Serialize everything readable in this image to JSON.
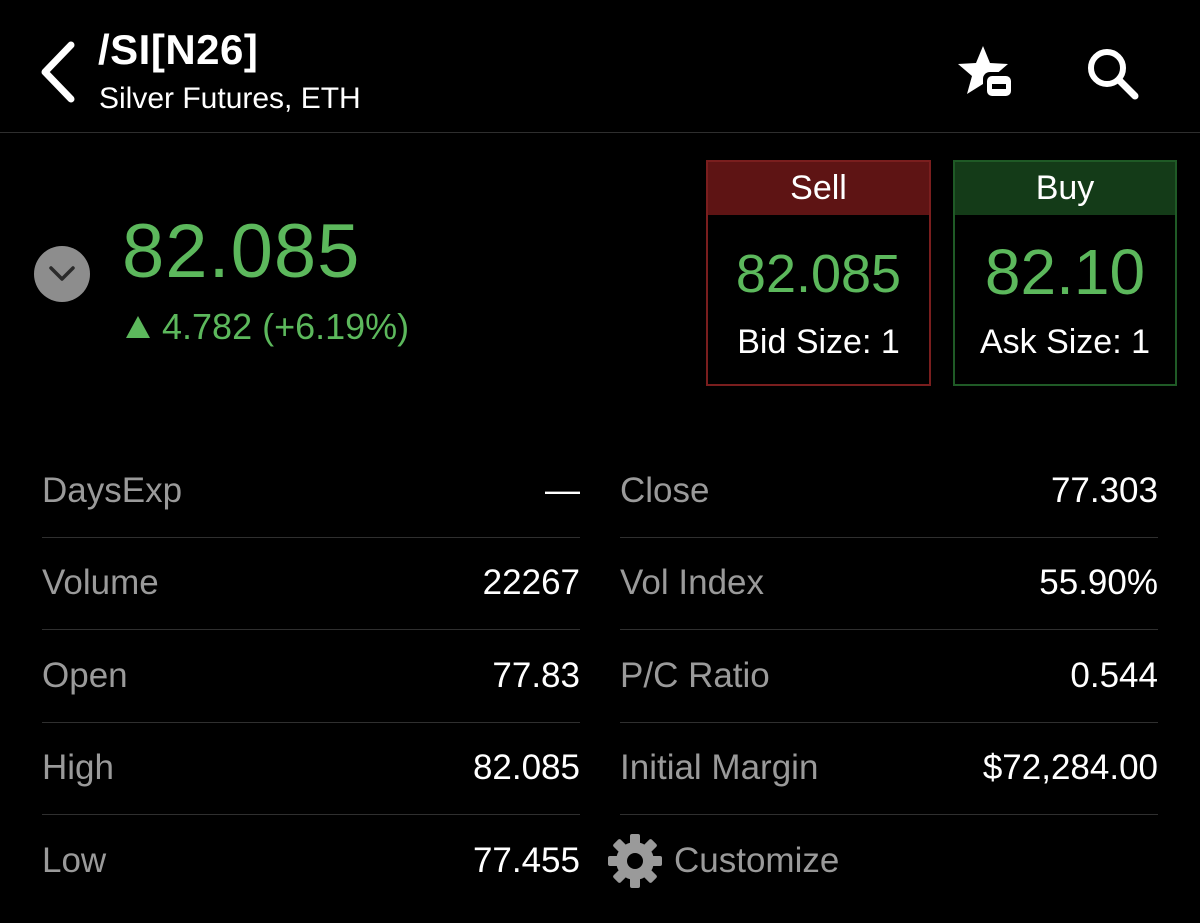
{
  "header": {
    "symbol": "/SI[N26]",
    "subtitle": "Silver Futures, ETH",
    "icons": [
      "back-chevron-icon",
      "watchlist-remove-icon",
      "search-icon"
    ]
  },
  "quote": {
    "last": "82.085",
    "change": "4.782 (+6.19%)",
    "direction": "up",
    "color_up": "#5cb85c"
  },
  "sell": {
    "label": "Sell",
    "price": "82.085",
    "size_text": "Bid Size: 1",
    "color": "#5e1414"
  },
  "buy": {
    "label": "Buy",
    "price": "82.10",
    "size_text": "Ask Size: 1",
    "color": "#143b18"
  },
  "stats": {
    "left": [
      {
        "label": "DaysExp",
        "value": "—"
      },
      {
        "label": "Volume",
        "value": "22267"
      },
      {
        "label": "Open",
        "value": "77.83"
      },
      {
        "label": "High",
        "value": "82.085"
      },
      {
        "label": "Low",
        "value": "77.455"
      }
    ],
    "right": [
      {
        "label": "Close",
        "value": "77.303"
      },
      {
        "label": "Vol Index",
        "value": "55.90%"
      },
      {
        "label": "P/C Ratio",
        "value": "0.544"
      },
      {
        "label": "Initial Margin",
        "value": "$72,284.00"
      }
    ],
    "customize_label": "Customize"
  }
}
